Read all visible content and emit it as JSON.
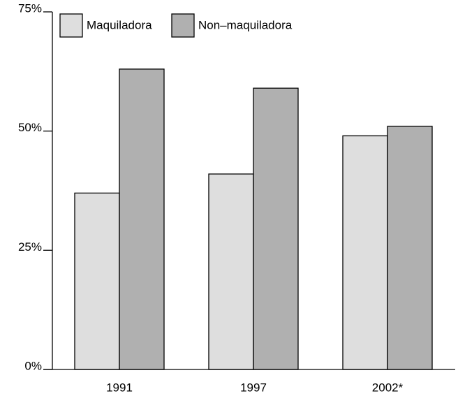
{
  "chart_data": {
    "type": "bar",
    "categories": [
      "1991",
      "1997",
      "2002*"
    ],
    "series": [
      {
        "name": "Maquiladora",
        "color": "#dedede",
        "values": [
          37,
          41,
          49
        ]
      },
      {
        "name": "Non–maquiladora",
        "color": "#b0b0b0",
        "values": [
          63,
          59,
          51
        ]
      }
    ],
    "ylim": [
      0,
      75
    ],
    "yticks": [
      {
        "value": 0,
        "label": "0%"
      },
      {
        "value": 25,
        "label": "25%"
      },
      {
        "value": 50,
        "label": "50%"
      },
      {
        "value": 75,
        "label": "75%"
      }
    ],
    "legend": "top-left"
  }
}
